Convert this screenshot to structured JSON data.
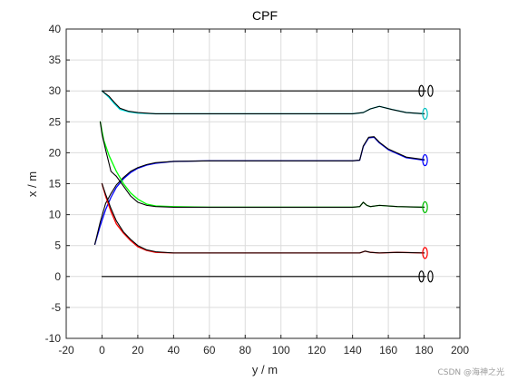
{
  "chart_data": {
    "type": "line",
    "title": "CPF",
    "xlabel": "y / m",
    "ylabel": "x / m",
    "xlim": [
      -20,
      200
    ],
    "ylim": [
      -10,
      40
    ],
    "xticks": [
      -20,
      0,
      20,
      40,
      60,
      80,
      100,
      120,
      140,
      160,
      180,
      200
    ],
    "yticks": [
      -10,
      -5,
      0,
      5,
      10,
      15,
      20,
      25,
      30,
      35,
      40
    ],
    "grid": true,
    "series": [
      {
        "color": "#000000",
        "x": [
          0,
          40,
          80,
          120,
          160,
          181
        ],
        "y": [
          30,
          30,
          30,
          30,
          30,
          30
        ]
      },
      {
        "color": "#00e5e5",
        "x": [
          0,
          4,
          7,
          10,
          15,
          20,
          30,
          60,
          100,
          140,
          146,
          150,
          155,
          162,
          170,
          180
        ],
        "y": [
          30,
          28.9,
          27.9,
          27.0,
          26.6,
          26.4,
          26.3,
          26.3,
          26.3,
          26.3,
          26.5,
          27.1,
          27.5,
          27.0,
          26.5,
          26.3
        ]
      },
      {
        "color": "#000000",
        "x": [
          0,
          4,
          7,
          10,
          15,
          20,
          30,
          60,
          100,
          140,
          146,
          150,
          155,
          162,
          170,
          180
        ],
        "y": [
          30,
          29.1,
          28.1,
          27.2,
          26.7,
          26.5,
          26.3,
          26.3,
          26.3,
          26.3,
          26.5,
          27.1,
          27.5,
          27.0,
          26.5,
          26.3
        ]
      },
      {
        "color": "#0000ff",
        "x": [
          -4,
          -1,
          2,
          5,
          8,
          12,
          16,
          20,
          25,
          30,
          40,
          60,
          100,
          140,
          144,
          146,
          149,
          152,
          155,
          160,
          170,
          180
        ],
        "y": [
          5.2,
          8.2,
          10.8,
          12.8,
          14.4,
          15.8,
          16.8,
          17.5,
          18.0,
          18.3,
          18.6,
          18.7,
          18.7,
          18.7,
          18.8,
          21.0,
          22.4,
          22.5,
          21.6,
          20.5,
          19.2,
          18.8
        ]
      },
      {
        "color": "#000000",
        "x": [
          -4,
          -1,
          2,
          5,
          8,
          12,
          16,
          20,
          25,
          30,
          40,
          60,
          100,
          140,
          144,
          146,
          149,
          152,
          155,
          160,
          170,
          180
        ],
        "y": [
          5.2,
          8.8,
          11.8,
          13.4,
          14.8,
          16.0,
          17.0,
          17.6,
          18.1,
          18.4,
          18.6,
          18.7,
          18.7,
          18.7,
          18.8,
          21.1,
          22.5,
          22.6,
          21.7,
          20.6,
          19.3,
          18.9
        ]
      },
      {
        "color": "#00ff00",
        "x": [
          -1,
          1,
          4,
          8,
          12,
          16,
          20,
          25,
          30,
          40,
          60,
          100,
          140,
          144,
          146,
          148,
          150,
          155,
          165,
          180
        ],
        "y": [
          25.0,
          22.0,
          19.5,
          17.0,
          15.0,
          13.5,
          12.5,
          11.7,
          11.4,
          11.3,
          11.2,
          11.2,
          11.2,
          11.3,
          12.0,
          11.5,
          11.3,
          11.5,
          11.3,
          11.2
        ]
      },
      {
        "color": "#000000",
        "x": [
          -1,
          0,
          2,
          5,
          8,
          12,
          16,
          20,
          25,
          30,
          40,
          60,
          100,
          140,
          144,
          146,
          148,
          150,
          155,
          165,
          180
        ],
        "y": [
          25.0,
          23.0,
          20.5,
          17.0,
          16.2,
          14.6,
          13.0,
          12.0,
          11.5,
          11.3,
          11.2,
          11.2,
          11.2,
          11.2,
          11.3,
          12.0,
          11.5,
          11.3,
          11.5,
          11.3,
          11.2
        ]
      },
      {
        "color": "#ff0000",
        "x": [
          0,
          2,
          5,
          8,
          12,
          16,
          20,
          25,
          30,
          40,
          60,
          100,
          140,
          144,
          147,
          150,
          155,
          165,
          180
        ],
        "y": [
          15.0,
          13.0,
          10.5,
          8.5,
          7.0,
          5.8,
          4.8,
          4.2,
          3.9,
          3.8,
          3.8,
          3.8,
          3.8,
          3.8,
          4.1,
          3.9,
          3.8,
          3.9,
          3.8
        ]
      },
      {
        "color": "#000000",
        "x": [
          0,
          2,
          5,
          8,
          12,
          16,
          20,
          25,
          30,
          40,
          60,
          100,
          140,
          144,
          147,
          150,
          155,
          165,
          180
        ],
        "y": [
          15.0,
          13.3,
          11.0,
          9.0,
          7.2,
          6.0,
          5.0,
          4.3,
          4.0,
          3.8,
          3.8,
          3.8,
          3.8,
          3.8,
          4.1,
          3.9,
          3.8,
          3.9,
          3.8
        ]
      },
      {
        "color": "#000000",
        "x": [
          0,
          40,
          80,
          120,
          160,
          181
        ],
        "y": [
          0,
          0,
          0,
          0,
          0,
          0
        ]
      }
    ],
    "markers": [
      {
        "x": 178.5,
        "y": 30,
        "color": "#000000"
      },
      {
        "x": 183.5,
        "y": 30,
        "color": "#000000"
      },
      {
        "x": 180.5,
        "y": 26.3,
        "color": "#00c0c0"
      },
      {
        "x": 180.5,
        "y": 18.8,
        "color": "#0000ff"
      },
      {
        "x": 180.5,
        "y": 11.2,
        "color": "#00c000"
      },
      {
        "x": 180.5,
        "y": 3.8,
        "color": "#ff0000"
      },
      {
        "x": 178.5,
        "y": 0,
        "color": "#000000"
      },
      {
        "x": 183.5,
        "y": 0,
        "color": "#000000"
      }
    ]
  },
  "watermark": "CSDN @海神之光"
}
